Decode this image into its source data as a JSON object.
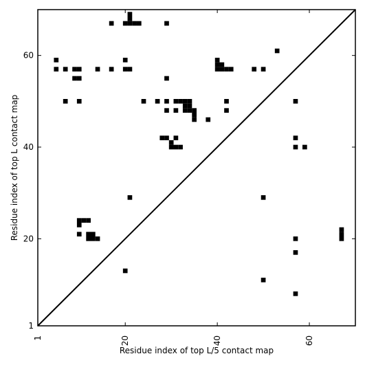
{
  "chart_data": {
    "type": "heatmap",
    "title": "",
    "xlabel": "Residue index of top L/5 contact map",
    "ylabel": "Residue index of top L contact map",
    "xlim": [
      1,
      70
    ],
    "ylim": [
      1,
      70
    ],
    "x_ticks": [
      {
        "value": 1,
        "label": "1"
      },
      {
        "value": 20,
        "label": "20"
      },
      {
        "value": 40,
        "label": "40"
      },
      {
        "value": 60,
        "label": "60"
      }
    ],
    "y_ticks": [
      {
        "value": 1,
        "label": "1"
      },
      {
        "value": 20,
        "label": "20"
      },
      {
        "value": 40,
        "label": "40"
      },
      {
        "value": 60,
        "label": "60"
      }
    ],
    "diagonal": true,
    "grid": false,
    "legend": "none",
    "colors": {
      "cell": "#000000",
      "background": "#ffffff",
      "frame": "#000000"
    },
    "upper_triangle_contacts": [
      [
        17,
        67
      ],
      [
        20,
        67
      ],
      [
        21,
        67
      ],
      [
        22,
        67
      ],
      [
        23,
        67
      ],
      [
        21,
        68
      ],
      [
        21,
        69
      ],
      [
        29,
        67
      ],
      [
        5,
        59
      ],
      [
        5,
        57
      ],
      [
        7,
        57
      ],
      [
        9,
        57
      ],
      [
        10,
        57
      ],
      [
        14,
        57
      ],
      [
        17,
        57
      ],
      [
        20,
        59
      ],
      [
        20,
        57
      ],
      [
        21,
        57
      ],
      [
        9,
        55
      ],
      [
        10,
        55
      ],
      [
        29,
        55
      ],
      [
        7,
        50
      ],
      [
        10,
        50
      ],
      [
        24,
        50
      ],
      [
        27,
        50
      ],
      [
        29,
        50
      ],
      [
        29,
        48
      ],
      [
        31,
        50
      ],
      [
        32,
        50
      ],
      [
        33,
        50
      ],
      [
        34,
        50
      ],
      [
        33,
        49
      ],
      [
        34,
        49
      ],
      [
        33,
        48
      ],
      [
        34,
        48
      ],
      [
        35,
        48
      ],
      [
        31,
        48
      ],
      [
        35,
        47
      ],
      [
        35,
        46
      ],
      [
        38,
        46
      ],
      [
        28,
        42
      ],
      [
        29,
        42
      ],
      [
        31,
        42
      ],
      [
        30,
        41
      ],
      [
        30,
        40
      ],
      [
        31,
        40
      ],
      [
        32,
        40
      ],
      [
        40,
        59
      ],
      [
        40,
        58
      ],
      [
        41,
        58
      ],
      [
        40,
        57
      ],
      [
        41,
        57
      ],
      [
        42,
        57
      ],
      [
        43,
        57
      ],
      [
        48,
        57
      ],
      [
        50,
        57
      ],
      [
        53,
        61
      ],
      [
        42,
        50
      ],
      [
        42,
        48
      ]
    ],
    "lower_triangle_contacts": [
      [
        21,
        29
      ],
      [
        10,
        24
      ],
      [
        11,
        24
      ],
      [
        12,
        24
      ],
      [
        10,
        23
      ],
      [
        10,
        21
      ],
      [
        12,
        21
      ],
      [
        13,
        21
      ],
      [
        12,
        20
      ],
      [
        13,
        20
      ],
      [
        14,
        20
      ],
      [
        20,
        13
      ],
      [
        57,
        50
      ],
      [
        57,
        42
      ],
      [
        57,
        40
      ],
      [
        59,
        40
      ],
      [
        50,
        29
      ],
      [
        67,
        22
      ],
      [
        67,
        21
      ],
      [
        67,
        20
      ],
      [
        57,
        20
      ],
      [
        57,
        17
      ],
      [
        50,
        11
      ],
      [
        57,
        8
      ]
    ]
  }
}
